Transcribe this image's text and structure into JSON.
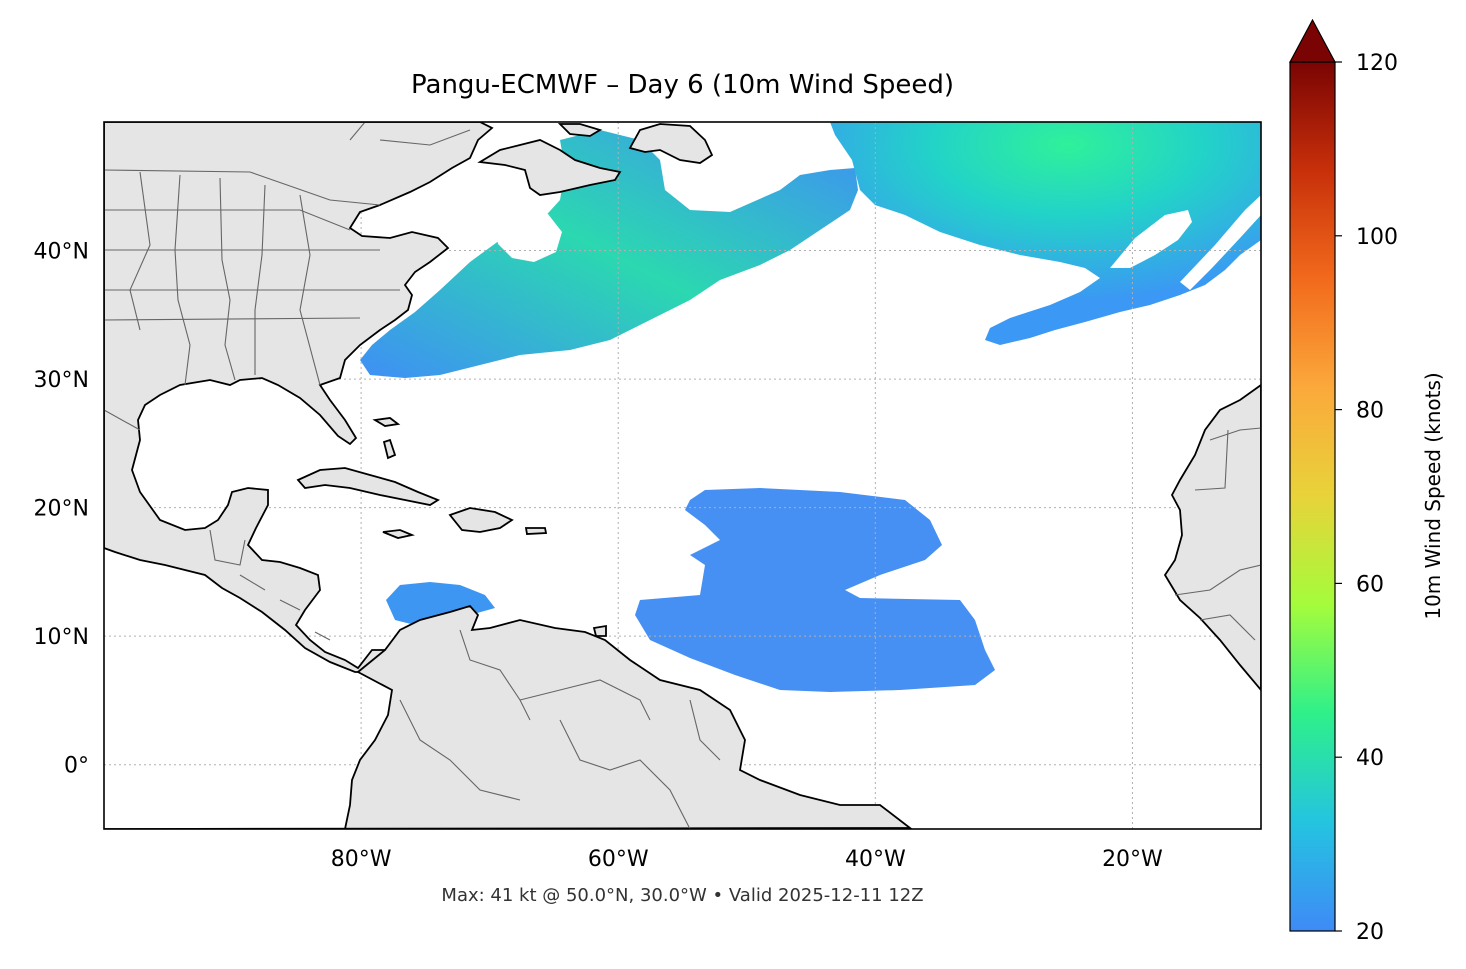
{
  "title": "Pangu-ECMWF – Day 6 (10m Wind Speed)",
  "footer": "Max: 41 kt @ 50.0°N, 30.0°W • Valid 2025-12-11 12Z",
  "map": {
    "lon_range": [
      -100,
      -10
    ],
    "lat_range": [
      -5,
      50
    ],
    "lat_ticks": [
      {
        "value": 40,
        "label": "40°N"
      },
      {
        "value": 30,
        "label": "30°N"
      },
      {
        "value": 20,
        "label": "20°N"
      },
      {
        "value": 10,
        "label": "10°N"
      },
      {
        "value": 0,
        "label": "0°"
      }
    ],
    "lon_ticks": [
      {
        "value": -80,
        "label": "80°W"
      },
      {
        "value": -60,
        "label": "60°W"
      },
      {
        "value": -40,
        "label": "40°W"
      },
      {
        "value": -20,
        "label": "20°W"
      }
    ],
    "gridlines": true,
    "land_color": "#e5e5e5",
    "coast_color": "#000000",
    "border_color": "#666666"
  },
  "colorbar": {
    "label": "10m Wind Speed (knots)",
    "min": 20,
    "max": 120,
    "ticks": [
      20,
      40,
      60,
      80,
      100,
      120
    ],
    "extend": "max",
    "colormap": "turbo",
    "stops": [
      "#3f8af6",
      "#24c4e0",
      "#2ef08a",
      "#a4fc3c",
      "#e8d33a",
      "#fba93b",
      "#f26a1c",
      "#c8300a",
      "#7a0403"
    ]
  },
  "wind": {
    "max_value": 41,
    "max_lat": 50.0,
    "max_lon": -30.0,
    "valid_time": "2025-12-11 12Z",
    "colors": {
      "low": "#4393f5",
      "mid": "#29b5ec",
      "high": "#2de89a"
    }
  }
}
